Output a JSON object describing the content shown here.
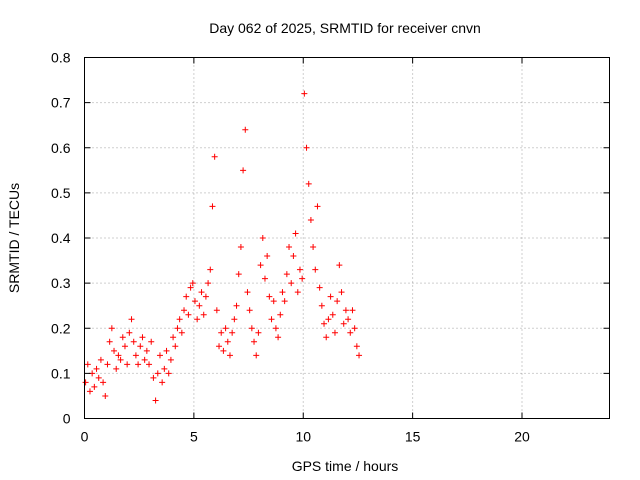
{
  "chart_data": {
    "type": "scatter",
    "title": "Day 062 of 2025, SRMTID for receiver cnvn",
    "xlabel": "GPS time / hours",
    "ylabel": "SRMTID / TECUs",
    "xlim": [
      0,
      24
    ],
    "ylim": [
      0,
      0.8
    ],
    "x_ticks": [
      0,
      5,
      10,
      15,
      20
    ],
    "y_ticks": [
      0,
      0.1,
      0.2,
      0.3,
      0.4,
      0.5,
      0.6,
      0.7,
      0.8
    ],
    "x_tick_labels": [
      "0",
      "5",
      "10",
      "15",
      "20"
    ],
    "y_tick_labels": [
      "0",
      "0.1",
      "0.2",
      "0.3",
      "0.4",
      "0.5",
      "0.6",
      "0.7",
      "0.8"
    ],
    "grid": true,
    "marker": "plus",
    "color": "#ff0000",
    "series": [
      {
        "name": "SRMTID",
        "points": [
          [
            0.05,
            0.08
          ],
          [
            0.15,
            0.12
          ],
          [
            0.25,
            0.06
          ],
          [
            0.35,
            0.1
          ],
          [
            0.45,
            0.07
          ],
          [
            0.55,
            0.11
          ],
          [
            0.65,
            0.09
          ],
          [
            0.75,
            0.13
          ],
          [
            0.85,
            0.08
          ],
          [
            0.95,
            0.05
          ],
          [
            1.05,
            0.12
          ],
          [
            1.15,
            0.17
          ],
          [
            1.25,
            0.2
          ],
          [
            1.35,
            0.15
          ],
          [
            1.45,
            0.11
          ],
          [
            1.55,
            0.14
          ],
          [
            1.65,
            0.13
          ],
          [
            1.75,
            0.18
          ],
          [
            1.85,
            0.16
          ],
          [
            1.95,
            0.12
          ],
          [
            2.05,
            0.19
          ],
          [
            2.15,
            0.22
          ],
          [
            2.25,
            0.17
          ],
          [
            2.35,
            0.14
          ],
          [
            2.45,
            0.12
          ],
          [
            2.55,
            0.16
          ],
          [
            2.65,
            0.18
          ],
          [
            2.75,
            0.13
          ],
          [
            2.85,
            0.15
          ],
          [
            2.95,
            0.12
          ],
          [
            3.05,
            0.17
          ],
          [
            3.15,
            0.09
          ],
          [
            3.25,
            0.04
          ],
          [
            3.35,
            0.1
          ],
          [
            3.45,
            0.14
          ],
          [
            3.55,
            0.08
          ],
          [
            3.65,
            0.11
          ],
          [
            3.75,
            0.15
          ],
          [
            3.85,
            0.1
          ],
          [
            3.95,
            0.13
          ],
          [
            4.05,
            0.18
          ],
          [
            4.15,
            0.16
          ],
          [
            4.25,
            0.2
          ],
          [
            4.35,
            0.22
          ],
          [
            4.45,
            0.19
          ],
          [
            4.55,
            0.24
          ],
          [
            4.65,
            0.27
          ],
          [
            4.75,
            0.23
          ],
          [
            4.85,
            0.29
          ],
          [
            4.95,
            0.3
          ],
          [
            5.05,
            0.26
          ],
          [
            5.15,
            0.22
          ],
          [
            5.25,
            0.25
          ],
          [
            5.35,
            0.28
          ],
          [
            5.45,
            0.23
          ],
          [
            5.55,
            0.27
          ],
          [
            5.65,
            0.3
          ],
          [
            5.75,
            0.33
          ],
          [
            5.85,
            0.47
          ],
          [
            5.95,
            0.58
          ],
          [
            6.05,
            0.24
          ],
          [
            6.15,
            0.16
          ],
          [
            6.25,
            0.19
          ],
          [
            6.35,
            0.15
          ],
          [
            6.45,
            0.2
          ],
          [
            6.55,
            0.17
          ],
          [
            6.65,
            0.14
          ],
          [
            6.75,
            0.19
          ],
          [
            6.85,
            0.22
          ],
          [
            6.95,
            0.25
          ],
          [
            7.05,
            0.32
          ],
          [
            7.15,
            0.38
          ],
          [
            7.25,
            0.55
          ],
          [
            7.35,
            0.64
          ],
          [
            7.45,
            0.28
          ],
          [
            7.55,
            0.24
          ],
          [
            7.65,
            0.2
          ],
          [
            7.75,
            0.17
          ],
          [
            7.85,
            0.14
          ],
          [
            7.95,
            0.19
          ],
          [
            8.05,
            0.34
          ],
          [
            8.15,
            0.4
          ],
          [
            8.25,
            0.31
          ],
          [
            8.35,
            0.36
          ],
          [
            8.45,
            0.27
          ],
          [
            8.55,
            0.22
          ],
          [
            8.65,
            0.26
          ],
          [
            8.75,
            0.2
          ],
          [
            8.85,
            0.18
          ],
          [
            8.95,
            0.23
          ],
          [
            9.05,
            0.28
          ],
          [
            9.15,
            0.26
          ],
          [
            9.25,
            0.32
          ],
          [
            9.35,
            0.38
          ],
          [
            9.45,
            0.3
          ],
          [
            9.55,
            0.36
          ],
          [
            9.65,
            0.41
          ],
          [
            9.75,
            0.28
          ],
          [
            9.85,
            0.33
          ],
          [
            9.95,
            0.31
          ],
          [
            10.05,
            0.72
          ],
          [
            10.15,
            0.6
          ],
          [
            10.25,
            0.52
          ],
          [
            10.35,
            0.44
          ],
          [
            10.45,
            0.38
          ],
          [
            10.55,
            0.33
          ],
          [
            10.65,
            0.47
          ],
          [
            10.75,
            0.29
          ],
          [
            10.85,
            0.25
          ],
          [
            10.95,
            0.21
          ],
          [
            11.05,
            0.18
          ],
          [
            11.15,
            0.22
          ],
          [
            11.25,
            0.27
          ],
          [
            11.35,
            0.23
          ],
          [
            11.45,
            0.19
          ],
          [
            11.55,
            0.26
          ],
          [
            11.65,
            0.34
          ],
          [
            11.75,
            0.28
          ],
          [
            11.85,
            0.21
          ],
          [
            11.95,
            0.24
          ],
          [
            12.05,
            0.22
          ],
          [
            12.15,
            0.19
          ],
          [
            12.25,
            0.24
          ],
          [
            12.35,
            0.2
          ],
          [
            12.45,
            0.16
          ],
          [
            12.55,
            0.14
          ]
        ]
      }
    ]
  }
}
